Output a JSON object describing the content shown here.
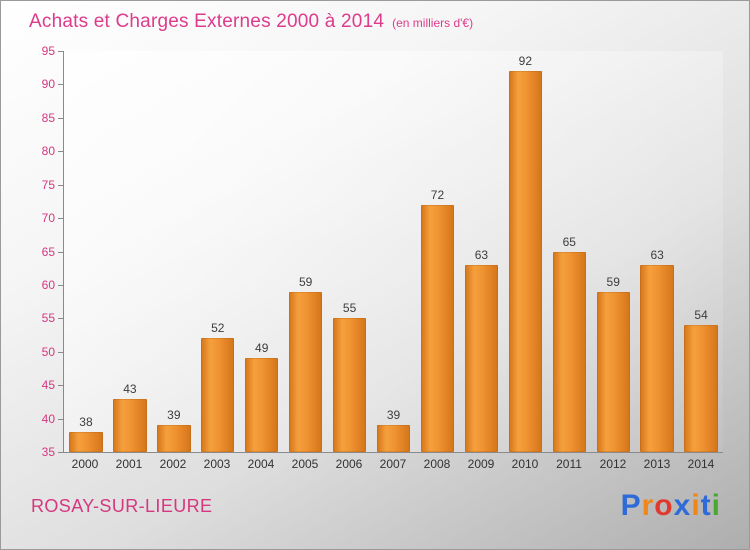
{
  "title": "Achats et Charges Externes 2000 à 2014",
  "subtitle": "(en milliers d'€)",
  "footer": {
    "location": "ROSAY-SUR-LIEURE",
    "logo_text": "Proxiti",
    "logo_letters": [
      {
        "ch": "P",
        "color": "#2f6bd8"
      },
      {
        "ch": "r",
        "color": "#f08519"
      },
      {
        "ch": "o",
        "color": "#e03a2f"
      },
      {
        "ch": "x",
        "color": "#2f6bd8"
      },
      {
        "ch": "i",
        "color": "#f08519"
      },
      {
        "ch": "t",
        "color": "#2f6bd8"
      },
      {
        "ch": "i",
        "color": "#48a832"
      }
    ]
  },
  "colors": {
    "title": "#dd3b8c",
    "y_tick_label": "#d6377f",
    "x_tick_label": "#333333",
    "bar": "#e8832a",
    "axis": "#8a8a8a",
    "value_label": "#3d3d3d"
  },
  "chart_data": {
    "type": "bar",
    "title": "Achats et Charges Externes 2000 à 2014",
    "subtitle": "(en milliers d'€)",
    "categories": [
      "2000",
      "2001",
      "2002",
      "2003",
      "2004",
      "2005",
      "2006",
      "2007",
      "2008",
      "2009",
      "2010",
      "2011",
      "2012",
      "2013",
      "2014"
    ],
    "values": [
      38,
      43,
      39,
      52,
      49,
      59,
      55,
      39,
      72,
      63,
      92,
      65,
      59,
      63,
      54
    ],
    "xlabel": "",
    "ylabel": "",
    "ylim": [
      35,
      95
    ],
    "ytick_step": 5,
    "grid": false,
    "legend": "none"
  }
}
